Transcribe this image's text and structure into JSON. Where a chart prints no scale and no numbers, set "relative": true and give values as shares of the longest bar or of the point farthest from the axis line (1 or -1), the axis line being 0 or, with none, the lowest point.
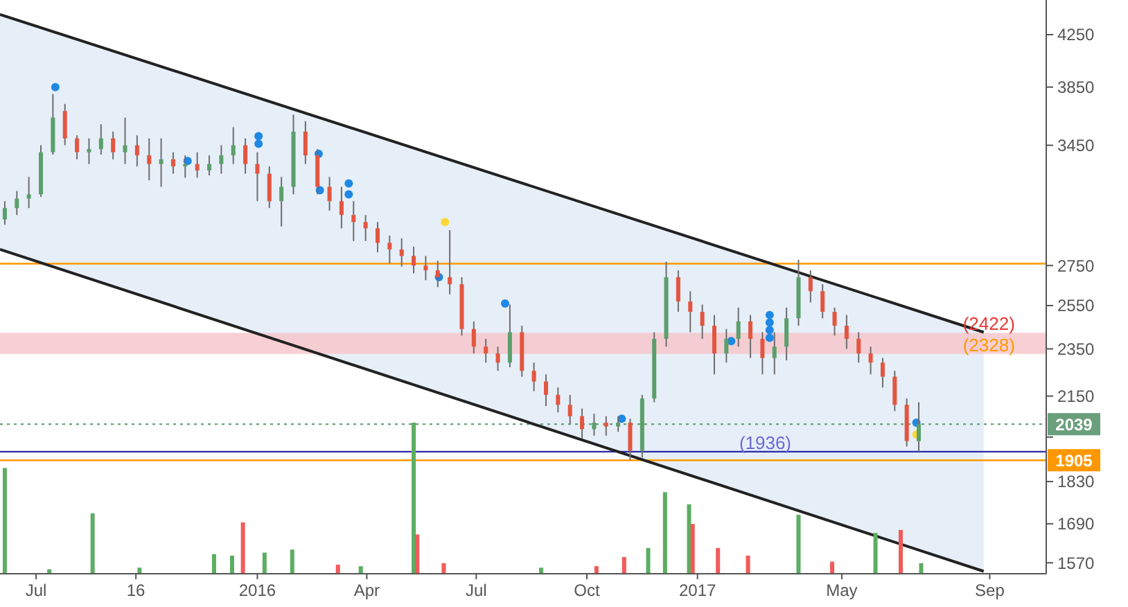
{
  "chart_data": [
    {
      "type": "candlestick",
      "log": "y",
      "xlim": [
        "2015-06-01",
        "2017-10-18"
      ],
      "ylim": [
        1538,
        4537
      ],
      "xticks": [
        {
          "value": "2015-07-01",
          "label": "Jul"
        },
        {
          "value": "2015-09-22",
          "label": "16"
        },
        {
          "value": "2016-01-01",
          "label": "2016"
        },
        {
          "value": "2016-04-01",
          "label": "Apr"
        },
        {
          "value": "2016-07-01",
          "label": "Jul"
        },
        {
          "value": "2016-10-01",
          "label": "Oct"
        },
        {
          "value": "2017-01-01",
          "label": "2017"
        },
        {
          "value": "2017-05-01",
          "label": "May"
        },
        {
          "value": "2017-09-01",
          "label": "Sep"
        }
      ],
      "yticks": [
        1570,
        1690,
        1830,
        {
          "value": 1990,
          "label": null
        },
        2150,
        2350,
        2550,
        2750,
        3450,
        3850,
        4250
      ],
      "x": [
        "2015-06-05",
        "2015-06-15",
        "2015-06-25",
        "2015-07-05",
        "2015-07-15",
        "2015-07-25",
        "2015-08-04",
        "2015-08-14",
        "2015-08-24",
        "2015-09-03",
        "2015-09-13",
        "2015-09-23",
        "2015-10-03",
        "2015-10-13",
        "2015-10-23",
        "2015-11-02",
        "2015-11-12",
        "2015-11-22",
        "2015-12-02",
        "2015-12-12",
        "2015-12-22",
        "2016-01-01",
        "2016-01-11",
        "2016-01-21",
        "2016-01-31",
        "2016-02-10",
        "2016-02-20",
        "2016-03-01",
        "2016-03-11",
        "2016-03-21",
        "2016-03-31",
        "2016-04-10",
        "2016-04-20",
        "2016-04-30",
        "2016-05-10",
        "2016-05-20",
        "2016-05-30",
        "2016-06-09",
        "2016-06-19",
        "2016-06-29",
        "2016-07-09",
        "2016-07-19",
        "2016-07-29",
        "2016-08-08",
        "2016-08-18",
        "2016-08-28",
        "2016-09-07",
        "2016-09-17",
        "2016-09-27",
        "2016-10-07",
        "2016-10-17",
        "2016-10-27",
        "2016-11-06",
        "2016-11-16",
        "2016-11-26",
        "2016-12-06",
        "2016-12-16",
        "2016-12-26",
        "2017-01-05",
        "2017-01-15",
        "2017-01-25",
        "2017-02-04",
        "2017-02-14",
        "2017-02-24",
        "2017-03-06",
        "2017-03-16",
        "2017-03-26",
        "2017-04-05",
        "2017-04-15",
        "2017-04-25",
        "2017-05-05",
        "2017-05-15",
        "2017-05-25",
        "2017-06-04",
        "2017-06-14",
        "2017-06-24",
        "2017-07-04"
      ],
      "ohlc": [
        [
          3000,
          3105,
          2970,
          3065
        ],
        [
          3065,
          3165,
          3025,
          3120
        ],
        [
          3120,
          3250,
          3065,
          3145
        ],
        [
          3145,
          3450,
          3130,
          3405
        ],
        [
          3405,
          3800,
          3390,
          3635
        ],
        [
          3680,
          3730,
          3450,
          3495
        ],
        [
          3495,
          3515,
          3360,
          3405
        ],
        [
          3405,
          3495,
          3330,
          3425
        ],
        [
          3425,
          3590,
          3390,
          3495
        ],
        [
          3495,
          3540,
          3360,
          3405
        ],
        [
          3405,
          3635,
          3330,
          3450
        ],
        [
          3450,
          3515,
          3315,
          3385
        ],
        [
          3385,
          3495,
          3230,
          3330
        ],
        [
          3330,
          3495,
          3190,
          3360
        ],
        [
          3360,
          3405,
          3270,
          3315
        ],
        [
          3315,
          3385,
          3245,
          3330
        ],
        [
          3330,
          3405,
          3245,
          3290
        ],
        [
          3290,
          3385,
          3260,
          3330
        ],
        [
          3330,
          3450,
          3270,
          3385
        ],
        [
          3385,
          3570,
          3330,
          3450
        ],
        [
          3450,
          3495,
          3270,
          3330
        ],
        [
          3330,
          3405,
          3105,
          3270
        ],
        [
          3270,
          3315,
          3065,
          3105
        ],
        [
          3105,
          3250,
          2960,
          3190
        ],
        [
          3190,
          3655,
          3145,
          3540
        ],
        [
          3540,
          3610,
          3330,
          3385
        ],
        [
          3385,
          3425,
          3145,
          3190
        ],
        [
          3190,
          3250,
          3050,
          3105
        ],
        [
          3105,
          3190,
          2950,
          3025
        ],
        [
          3025,
          3105,
          2880,
          2985
        ],
        [
          2985,
          3025,
          2880,
          2950
        ],
        [
          2950,
          2985,
          2820,
          2870
        ],
        [
          2870,
          2910,
          2760,
          2835
        ],
        [
          2835,
          2895,
          2745,
          2800
        ],
        [
          2800,
          2850,
          2710,
          2750
        ],
        [
          2750,
          2800,
          2675,
          2725
        ],
        [
          2725,
          2775,
          2640,
          2690
        ],
        [
          2690,
          2940,
          2605,
          2655
        ],
        [
          2655,
          2690,
          2410,
          2440
        ],
        [
          2440,
          2475,
          2330,
          2360
        ],
        [
          2360,
          2395,
          2290,
          2330
        ],
        [
          2330,
          2360,
          2255,
          2290
        ],
        [
          2290,
          2555,
          2270,
          2425
        ],
        [
          2425,
          2455,
          2230,
          2255
        ],
        [
          2255,
          2290,
          2170,
          2210
        ],
        [
          2210,
          2240,
          2110,
          2155
        ],
        [
          2155,
          2185,
          2085,
          2115
        ],
        [
          2115,
          2155,
          2040,
          2070
        ],
        [
          2070,
          2100,
          1985,
          2020
        ],
        [
          2020,
          2080,
          1995,
          2045
        ],
        [
          2045,
          2070,
          1995,
          2030
        ],
        [
          2030,
          2070,
          2010,
          2045
        ],
        [
          2045,
          2060,
          1905,
          1940
        ],
        [
          1940,
          2155,
          1915,
          2140
        ],
        [
          2140,
          2425,
          2125,
          2395
        ],
        [
          2395,
          2770,
          2360,
          2690
        ],
        [
          2690,
          2725,
          2520,
          2570
        ],
        [
          2570,
          2620,
          2425,
          2520
        ],
        [
          2520,
          2555,
          2395,
          2455
        ],
        [
          2455,
          2505,
          2240,
          2330
        ],
        [
          2330,
          2440,
          2290,
          2395
        ],
        [
          2395,
          2540,
          2360,
          2475
        ],
        [
          2475,
          2505,
          2310,
          2395
        ],
        [
          2395,
          2425,
          2240,
          2310
        ],
        [
          2310,
          2425,
          2240,
          2360
        ],
        [
          2360,
          2540,
          2300,
          2490
        ],
        [
          2490,
          2780,
          2455,
          2690
        ],
        [
          2690,
          2725,
          2565,
          2620
        ],
        [
          2620,
          2655,
          2490,
          2520
        ],
        [
          2520,
          2540,
          2410,
          2455
        ],
        [
          2455,
          2505,
          2350,
          2395
        ],
        [
          2395,
          2425,
          2290,
          2330
        ],
        [
          2330,
          2360,
          2240,
          2290
        ],
        [
          2290,
          2310,
          2185,
          2230
        ],
        [
          2230,
          2255,
          2090,
          2115
        ],
        [
          2115,
          2140,
          1955,
          1975
        ],
        [
          1975,
          2125,
          1936,
          2039
        ]
      ],
      "series": [
        {
          "type": "line",
          "color": "#222222",
          "x": [
            "2015-06-01",
            "2017-08-27"
          ],
          "values": [
            4415,
            2425
          ],
          "lower": [
            2835,
            1545
          ],
          "upper": [
            4415,
            2425
          ]
        },
        {
          "type": "line",
          "color": "#222222",
          "x": [
            "2015-06-01",
            "2017-08-27"
          ],
          "values": [
            2835,
            1545
          ]
        },
        {
          "type": "scatter",
          "color": "#1e88e5",
          "x": [
            "2015-07-17",
            "2015-11-04",
            "2016-01-02",
            "2016-01-02",
            "2016-02-21",
            "2016-02-22",
            "2016-03-17",
            "2016-03-17",
            "2016-05-31",
            "2016-07-25",
            "2016-10-30",
            "2017-01-29",
            "2017-03-02",
            "2017-03-02",
            "2017-03-02",
            "2017-03-02",
            "2017-07-02"
          ],
          "values": [
            3850,
            3350,
            3510,
            3460,
            3395,
            3170,
            3210,
            3145,
            2690,
            2560,
            2060,
            2385,
            2505,
            2470,
            2435,
            2400,
            2045
          ]
        },
        {
          "type": "scatter",
          "color": "#fdd835",
          "x": [
            "2016-06-05",
            "2017-07-02"
          ],
          "values": [
            2985,
            2000
          ]
        }
      ],
      "ref_lines": [
        {
          "axis": "y",
          "value": 2039,
          "label": "2039",
          "color": "#6a9f7c",
          "line_style": "dotted"
        },
        {
          "axis": "y",
          "value": 1905,
          "label": "1905",
          "color": "#ff9800",
          "line_style": "solid"
        },
        {
          "axis": "y",
          "value": 1936,
          "color": "#2a2aa8",
          "line_style": "solid"
        },
        {
          "axis": "y",
          "value": 2760,
          "color": "#ff9800",
          "line_style": "solid"
        }
      ],
      "bands": [
        {
          "axis": "y",
          "from": 2328,
          "to": 2422,
          "color": "#f6c4c8"
        }
      ],
      "annotations": [
        {
          "text": "(2422)",
          "x": "2017-09-22",
          "y": 2422
        },
        {
          "text": "(2328)",
          "x": "2017-09-22",
          "y": 2328
        },
        {
          "text": "(1936)",
          "x": "2017-03-20",
          "y": 1936
        }
      ]
    },
    {
      "type": "bar",
      "relative": true,
      "xlim": [
        "2015-06-01",
        "2017-10-18"
      ],
      "x": [
        "2015-06-05",
        "2015-07-12",
        "2015-08-17",
        "2015-09-25",
        "2015-11-26",
        "2015-12-11",
        "2015-12-20",
        "2016-01-07",
        "2016-01-30",
        "2016-03-08",
        "2016-03-27",
        "2016-05-10",
        "2016-05-13",
        "2016-06-04",
        "2016-08-24",
        "2016-10-09",
        "2016-11-01",
        "2016-11-21",
        "2016-12-05",
        "2016-12-25",
        "2016-12-28",
        "2017-01-18",
        "2017-02-12",
        "2017-03-26",
        "2017-04-23",
        "2017-05-29",
        "2017-06-19",
        "2017-07-06"
      ],
      "values": [
        0.7,
        0.03,
        0.4,
        0.04,
        0.13,
        0.12,
        0.34,
        0.14,
        0.16,
        0.06,
        0.05,
        1,
        0.26,
        0.07,
        0.04,
        0.05,
        0.11,
        0.17,
        0.54,
        0.46,
        0.33,
        0.17,
        0.12,
        0.39,
        0.08,
        0.27,
        0.29,
        0.07
      ],
      "colors": [
        "#5cae62",
        "#5cae62",
        "#5cae62",
        "#5cae62",
        "#5cae62",
        "#5cae62",
        "#f25a5a",
        "#5cae62",
        "#5cae62",
        "#f25a5a",
        "#5cae62",
        "#5cae62",
        "#f25a5a",
        "#f25a5a",
        "#5cae62",
        "#f25a5a",
        "#f25a5a",
        "#5cae62",
        "#5cae62",
        "#5cae62",
        "#f25a5a",
        "#f25a5a",
        "#f25a5a",
        "#5cae62",
        "#f25a5a",
        "#5cae62",
        "#f25a5a",
        "#5cae62"
      ]
    }
  ]
}
